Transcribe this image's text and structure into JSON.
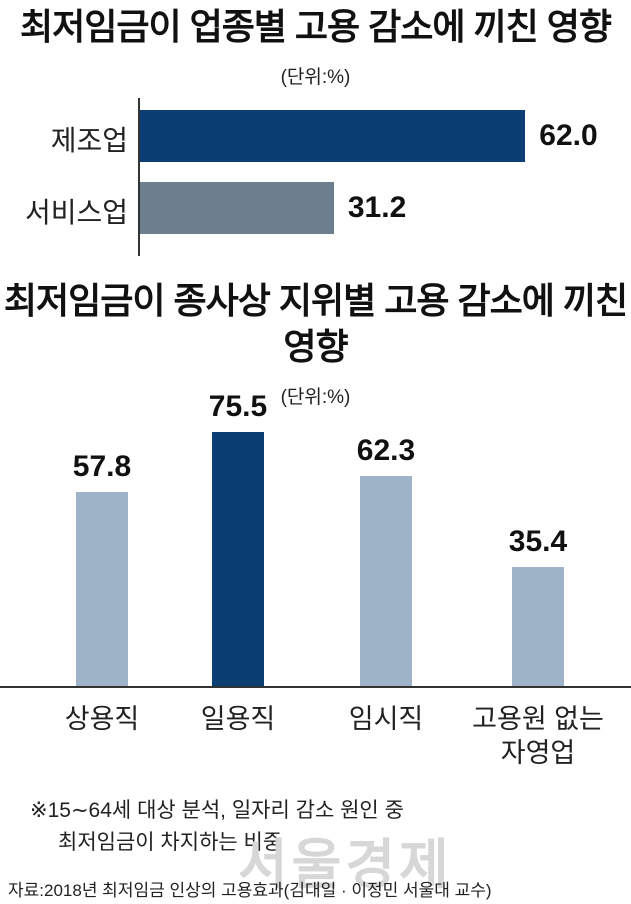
{
  "chart_data": [
    {
      "type": "bar",
      "orientation": "horizontal",
      "title": "최저임금이 업종별 고용 감소에 끼친 영향",
      "unit": "(단위:%)",
      "categories": [
        "제조업",
        "서비스업"
      ],
      "values": [
        62.0,
        31.2
      ],
      "value_labels": [
        "62.0",
        "31.2"
      ],
      "colors": [
        "#0b3f73",
        "#6b7f8f"
      ],
      "xlim": [
        0,
        70
      ]
    },
    {
      "type": "bar",
      "orientation": "vertical",
      "title": "최저임금이 종사상 지위별 고용 감소에 끼친 영향",
      "unit": "(단위:%)",
      "categories": [
        "상용직",
        "일용직",
        "임시직",
        "고용원 없는 자영업"
      ],
      "values": [
        57.8,
        75.5,
        62.3,
        35.4
      ],
      "value_labels": [
        "57.8",
        "75.5",
        "62.3",
        "35.4"
      ],
      "colors": [
        "#9fb3c8",
        "#0b3f73",
        "#9fb3c8",
        "#9fb3c8"
      ],
      "ylim": [
        0,
        85
      ]
    }
  ],
  "note": {
    "line1": "※15∼64세 대상 분석, 일자리 감소 원인 중",
    "line2": "최저임금이 차지하는 비중"
  },
  "source": "자료:2018년 최저임금 인상의 고용효과(김대일 · 이정민 서울대 교수)",
  "watermark": "서울경제"
}
